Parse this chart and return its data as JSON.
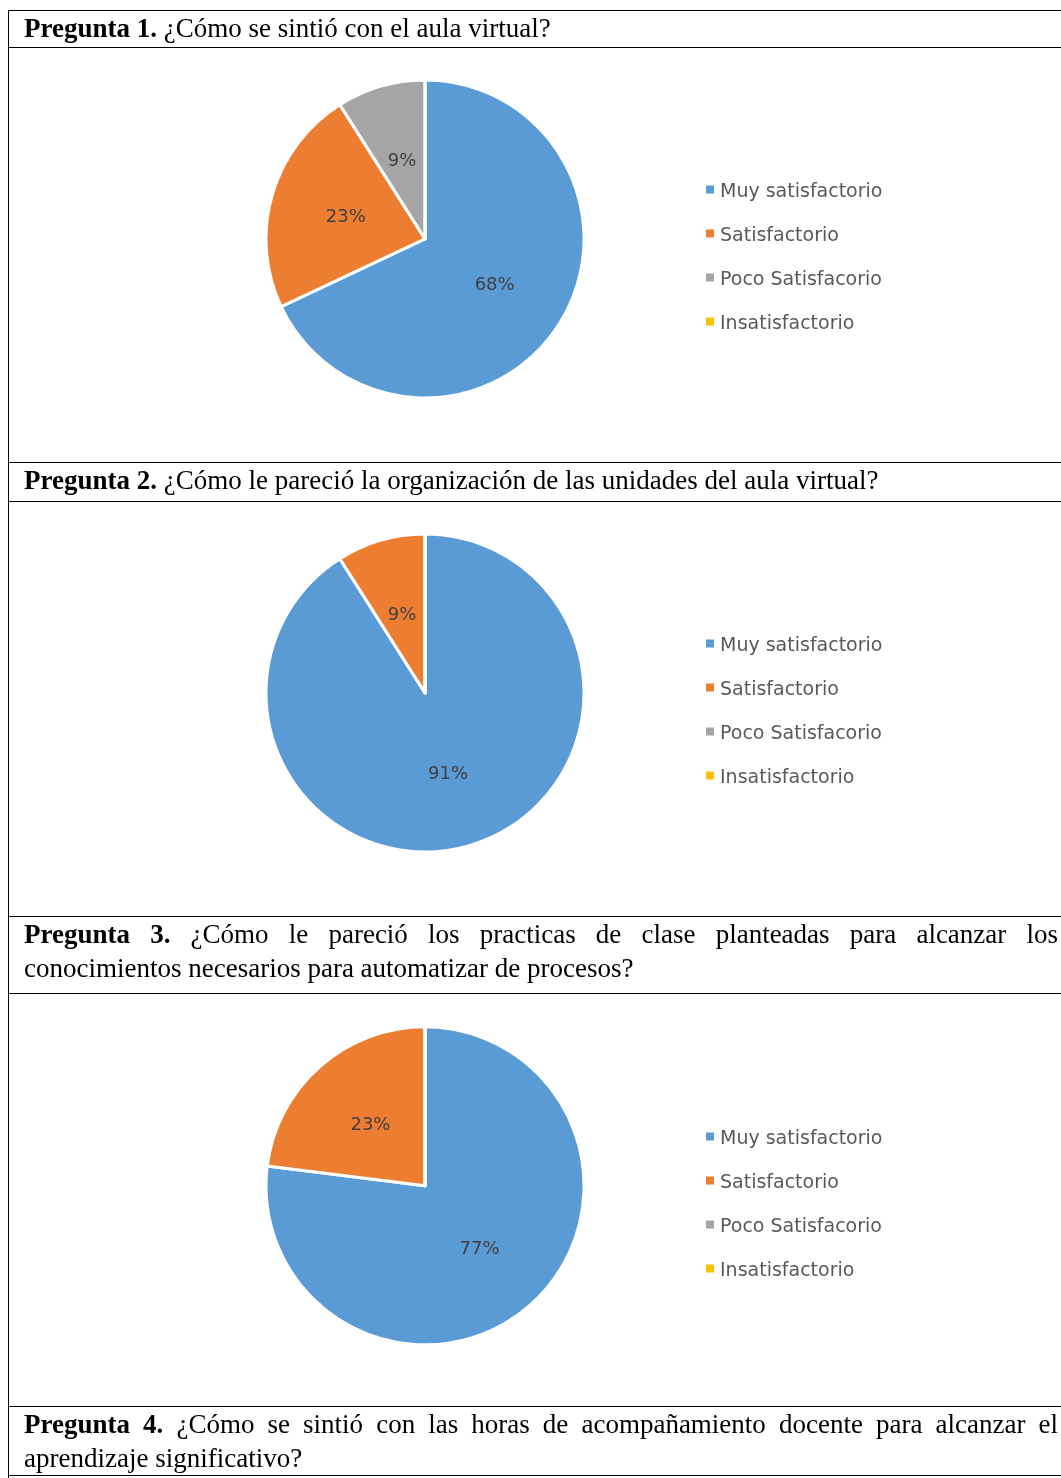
{
  "chart_data": [
    {
      "type": "pie",
      "title": "Pregunta 1. ¿Cómo se sintió con el aula virtual?",
      "categories": [
        "Muy satisfactorio",
        "Satisfactorio",
        "Poco Satisfacorio",
        "Insatisfactorio"
      ],
      "values": [
        68,
        23,
        9,
        0
      ],
      "colors": [
        "#5b9bd5",
        "#ed7d31",
        "#a5a5a5",
        "#ffc000"
      ],
      "value_labels": [
        "68%",
        "23%",
        "9%",
        null
      ],
      "legend": "right"
    },
    {
      "type": "pie",
      "title": "Pregunta 2. ¿Cómo le pareció la organización de las unidades del aula virtual?",
      "categories": [
        "Muy satisfactorio",
        "Satisfactorio",
        "Poco Satisfacorio",
        "Insatisfactorio"
      ],
      "values": [
        91,
        9,
        0,
        0
      ],
      "colors": [
        "#5b9bd5",
        "#ed7d31",
        "#a5a5a5",
        "#ffc000"
      ],
      "value_labels": [
        "91%",
        "9%",
        null,
        null
      ],
      "legend": "right"
    },
    {
      "type": "pie",
      "title": "Pregunta 3. ¿Cómo le pareció los practicas de clase planteadas para alcanzar los conocimientos necesarios para automatizar de procesos?",
      "categories": [
        "Muy satisfactorio",
        "Satisfactorio",
        "Poco Satisfacorio",
        "Insatisfactorio"
      ],
      "values": [
        77,
        23,
        0,
        0
      ],
      "colors": [
        "#5b9bd5",
        "#ed7d31",
        "#a5a5a5",
        "#ffc000"
      ],
      "value_labels": [
        "77%",
        "23%",
        null,
        null
      ],
      "legend": "right"
    },
    {
      "type": "other",
      "title": "Pregunta 4. ¿Cómo se sintió con las horas de acompañamiento docente para alcanzar el aprendizaje significativo?"
    }
  ]
}
